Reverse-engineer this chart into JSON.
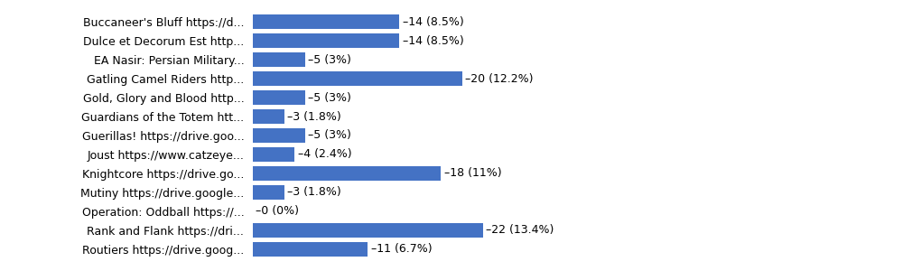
{
  "categories": [
    "Buccaneer's Bluff https://d...",
    "Dulce et Decorum Est http...",
    "EA Nasir: Persian Military...",
    "Gatling Camel Riders http...",
    "Gold, Glory and Blood http...",
    "Guardians of the Totem htt...",
    "Guerillas! https://drive.goo...",
    "Joust https://www.catzeye...",
    "Knightcore https://drive.go...",
    "Mutiny https://drive.google...",
    "Operation: Oddball https://...",
    "Rank and Flank https://dri...",
    "Routiers https://drive.goog..."
  ],
  "values": [
    14,
    14,
    5,
    20,
    5,
    3,
    5,
    4,
    18,
    3,
    0,
    22,
    11
  ],
  "labels": [
    "14 (8.5%)",
    "14 (8.5%)",
    "5 (3%)",
    "20 (12.2%)",
    "5 (3%)",
    "3 (1.8%)",
    "5 (3%)",
    "4 (2.4%)",
    "18 (11%)",
    "3 (1.8%)",
    "0 (0%)",
    "22 (13.4%)",
    "11 (6.7%)"
  ],
  "bar_color": "#4472C4",
  "label_fontsize": 9.0,
  "tick_fontsize": 9.0,
  "background_color": "#ffffff",
  "xlim": [
    0,
    38
  ],
  "bar_height": 0.75
}
